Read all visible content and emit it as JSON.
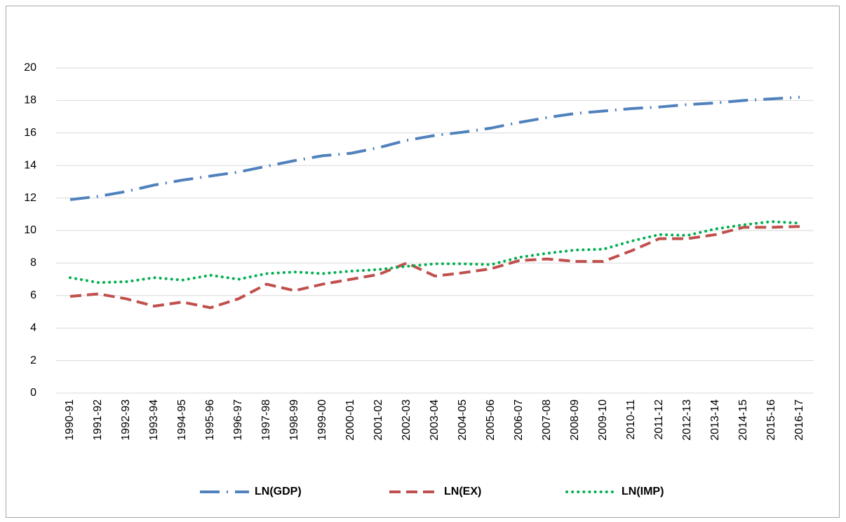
{
  "chart_data": {
    "type": "line",
    "categories": [
      "1990-91",
      "1991-92",
      "1992-93",
      "1993-94",
      "1994-95",
      "1995-96",
      "1996-97",
      "1997-98",
      "1998-99",
      "1999-00",
      "2000-01",
      "2001-02",
      "2002-03",
      "2003-04",
      "2004-05",
      "2005-06",
      "2006-07",
      "2007-08",
      "2008-09",
      "2009-10",
      "2010-11",
      "2011-12",
      "2012-13",
      "2013-14",
      "2014-15",
      "2015-16",
      "2016-17"
    ],
    "series": [
      {
        "name": "LN(GDP)",
        "color": "#4f81bd",
        "dash": "long-dash-dot",
        "values": [
          11.9,
          12.1,
          12.4,
          12.8,
          13.1,
          13.35,
          13.6,
          13.95,
          14.3,
          14.6,
          14.75,
          15.1,
          15.55,
          15.85,
          16.05,
          16.3,
          16.65,
          16.95,
          17.2,
          17.35,
          17.5,
          17.6,
          17.75,
          17.85,
          18.0,
          18.1,
          18.2
        ]
      },
      {
        "name": "LN(EX)",
        "color": "#c0504d",
        "dash": "dash",
        "values": [
          5.95,
          6.1,
          5.8,
          5.35,
          5.6,
          5.25,
          5.8,
          6.7,
          6.3,
          6.7,
          7.0,
          7.3,
          8.0,
          7.2,
          7.4,
          7.65,
          8.15,
          8.25,
          8.1,
          8.1,
          8.75,
          9.5,
          9.5,
          9.75,
          10.2,
          10.2,
          10.25
        ]
      },
      {
        "name": "LN(IMP)",
        "color": "#00b050",
        "dash": "dot",
        "values": [
          7.1,
          6.8,
          6.85,
          7.1,
          6.95,
          7.25,
          7.0,
          7.35,
          7.45,
          7.35,
          7.5,
          7.6,
          7.8,
          7.95,
          7.95,
          7.9,
          8.35,
          8.6,
          8.8,
          8.85,
          9.35,
          9.75,
          9.7,
          10.1,
          10.35,
          10.55,
          10.45
        ]
      }
    ],
    "ylim": [
      0,
      20
    ],
    "yticks": [
      0,
      2,
      4,
      6,
      8,
      10,
      12,
      14,
      16,
      18,
      20
    ],
    "grid": true,
    "legend": "bottom"
  }
}
